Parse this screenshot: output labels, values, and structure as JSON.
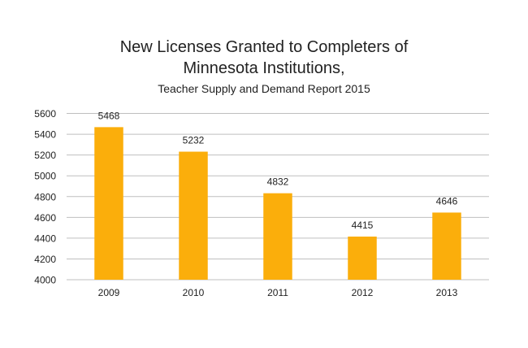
{
  "chart_data": {
    "type": "bar",
    "title": "New Licenses Granted to Completers of",
    "title_line2": "Minnesota Institutions,",
    "subtitle": "Teacher Supply and Demand Report 2015",
    "categories": [
      "2009",
      "2010",
      "2011",
      "2012",
      "2013"
    ],
    "values": [
      5468,
      5232,
      4832,
      4415,
      4646
    ],
    "data_labels": [
      "5468",
      "5232",
      "4832",
      "4415",
      "4646"
    ],
    "xlabel": "",
    "ylabel": "",
    "ylim": [
      4000,
      5600
    ],
    "yticks": [
      "4000",
      "4200",
      "4400",
      "4600",
      "4800",
      "5000",
      "5200",
      "5400",
      "5600"
    ],
    "grid": true,
    "legend": "none",
    "bar_color": "#FBAE0B",
    "grid_color": "#BFBFBF"
  }
}
